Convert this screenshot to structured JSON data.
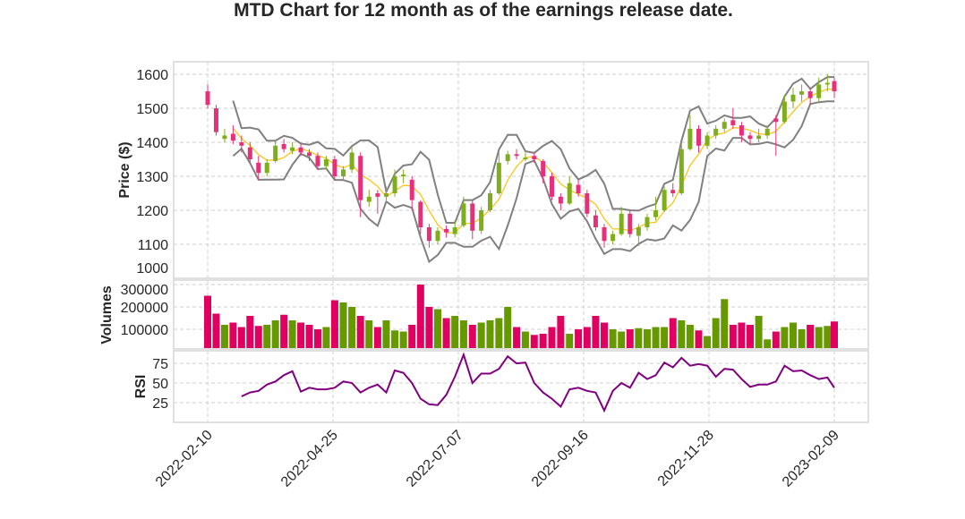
{
  "chart_data": {
    "type": "candlestick",
    "title": "MTD Chart for 12 month as of the earnings release date.",
    "x_ticks": [
      "2022-02-10",
      "2022-04-25",
      "2022-07-07",
      "2022-09-16",
      "2022-11-28",
      "2023-02-09"
    ],
    "grid": true,
    "colors": {
      "up": "#7fae1c",
      "down": "#e8307a",
      "volume_up": "#669900",
      "volume_down": "#e0005f",
      "moving_average": "#ffc107",
      "bands": "#808080",
      "rsi": "#800080"
    },
    "price_panel": {
      "ylabel": "Price ($)",
      "yticks": [
        1000,
        1100,
        1200,
        1300,
        1400,
        1500,
        1600
      ],
      "ylim": [
        1000,
        1637
      ]
    },
    "volume_panel": {
      "ylabel": "Volumes",
      "yticks": [
        100000,
        200000,
        300000
      ],
      "ylim": [
        12000,
        320000
      ]
    },
    "rsi_panel": {
      "ylabel": "RSI",
      "yticks": [
        25,
        50,
        75
      ],
      "ylim": [
        0,
        91
      ]
    },
    "candles": [
      [
        "2022-02-10",
        1550,
        1570,
        1500,
        1510
      ],
      [
        "2022-02-15",
        1500,
        1510,
        1420,
        1430
      ],
      [
        "2022-02-20",
        1410,
        1440,
        1400,
        1420
      ],
      [
        "2022-02-25",
        1425,
        1450,
        1395,
        1405
      ],
      [
        "2022-03-02",
        1400,
        1420,
        1370,
        1390
      ],
      [
        "2022-03-07",
        1385,
        1400,
        1340,
        1350
      ],
      [
        "2022-03-12",
        1340,
        1360,
        1290,
        1310
      ],
      [
        "2022-03-17",
        1310,
        1350,
        1300,
        1340
      ],
      [
        "2022-03-22",
        1345,
        1405,
        1340,
        1390
      ],
      [
        "2022-03-27",
        1395,
        1410,
        1370,
        1380
      ],
      [
        "2022-04-01",
        1375,
        1400,
        1365,
        1385
      ],
      [
        "2022-04-06",
        1385,
        1395,
        1360,
        1370
      ],
      [
        "2022-04-11",
        1370,
        1380,
        1345,
        1360
      ],
      [
        "2022-04-16",
        1360,
        1370,
        1320,
        1330
      ],
      [
        "2022-04-21",
        1330,
        1360,
        1320,
        1350
      ],
      [
        "2022-04-26",
        1350,
        1360,
        1290,
        1300
      ],
      [
        "2022-05-01",
        1300,
        1330,
        1290,
        1320
      ],
      [
        "2022-05-06",
        1320,
        1385,
        1310,
        1370
      ],
      [
        "2022-05-11",
        1360,
        1370,
        1180,
        1230
      ],
      [
        "2022-05-16",
        1225,
        1260,
        1210,
        1240
      ],
      [
        "2022-05-21",
        1250,
        1260,
        1190,
        1240
      ],
      [
        "2022-05-26",
        1240,
        1270,
        1220,
        1250
      ],
      [
        "2022-05-31",
        1250,
        1320,
        1240,
        1300
      ],
      [
        "2022-06-05",
        1300,
        1320,
        1280,
        1305
      ],
      [
        "2022-06-10",
        1290,
        1300,
        1200,
        1230
      ],
      [
        "2022-06-15",
        1225,
        1230,
        1130,
        1150
      ],
      [
        "2022-06-20",
        1150,
        1160,
        1090,
        1110
      ],
      [
        "2022-06-25",
        1110,
        1150,
        1100,
        1140
      ],
      [
        "2022-06-30",
        1145,
        1155,
        1120,
        1135
      ],
      [
        "2022-07-05",
        1130,
        1170,
        1120,
        1150
      ],
      [
        "2022-07-10",
        1155,
        1240,
        1150,
        1220
      ],
      [
        "2022-07-15",
        1220,
        1230,
        1115,
        1140
      ],
      [
        "2022-07-20",
        1140,
        1210,
        1130,
        1200
      ],
      [
        "2022-07-25",
        1200,
        1260,
        1195,
        1250
      ],
      [
        "2022-07-30",
        1250,
        1370,
        1245,
        1340
      ],
      [
        "2022-08-04",
        1345,
        1375,
        1335,
        1365
      ],
      [
        "2022-08-09",
        1365,
        1380,
        1350,
        1360
      ],
      [
        "2022-08-14",
        1350,
        1370,
        1345,
        1355
      ],
      [
        "2022-08-19",
        1360,
        1370,
        1340,
        1350
      ],
      [
        "2022-08-24",
        1345,
        1350,
        1280,
        1300
      ],
      [
        "2022-08-29",
        1300,
        1310,
        1230,
        1240
      ],
      [
        "2022-09-03",
        1240,
        1250,
        1200,
        1220
      ],
      [
        "2022-09-08",
        1220,
        1300,
        1215,
        1280
      ],
      [
        "2022-09-13",
        1275,
        1290,
        1240,
        1250
      ],
      [
        "2022-09-18",
        1250,
        1260,
        1180,
        1190
      ],
      [
        "2022-09-23",
        1185,
        1200,
        1140,
        1150
      ],
      [
        "2022-09-28",
        1150,
        1160,
        1090,
        1110
      ],
      [
        "2022-10-03",
        1110,
        1140,
        1100,
        1130
      ],
      [
        "2022-10-08",
        1130,
        1210,
        1125,
        1190
      ],
      [
        "2022-10-13",
        1190,
        1200,
        1120,
        1130
      ],
      [
        "2022-10-18",
        1125,
        1160,
        1095,
        1150
      ],
      [
        "2022-10-23",
        1150,
        1190,
        1140,
        1180
      ],
      [
        "2022-10-28",
        1180,
        1240,
        1170,
        1200
      ],
      [
        "2022-11-02",
        1200,
        1270,
        1195,
        1260
      ],
      [
        "2022-11-07",
        1260,
        1280,
        1240,
        1250
      ],
      [
        "2022-11-12",
        1250,
        1400,
        1245,
        1380
      ],
      [
        "2022-11-17",
        1380,
        1480,
        1375,
        1440
      ],
      [
        "2022-11-22",
        1440,
        1450,
        1370,
        1390
      ],
      [
        "2022-11-27",
        1390,
        1430,
        1380,
        1420
      ],
      [
        "2022-12-02",
        1420,
        1450,
        1410,
        1440
      ],
      [
        "2022-12-07",
        1440,
        1470,
        1430,
        1460
      ],
      [
        "2022-12-12",
        1465,
        1500,
        1440,
        1450
      ],
      [
        "2022-12-17",
        1450,
        1460,
        1400,
        1420
      ],
      [
        "2022-12-22",
        1420,
        1430,
        1395,
        1410
      ],
      [
        "2022-12-27",
        1410,
        1440,
        1400,
        1420
      ],
      [
        "2023-01-01",
        1420,
        1450,
        1410,
        1440
      ],
      [
        "2023-01-06",
        1470,
        1480,
        1360,
        1460
      ],
      [
        "2023-01-11",
        1460,
        1540,
        1455,
        1520
      ],
      [
        "2023-01-16",
        1520,
        1560,
        1500,
        1540
      ],
      [
        "2023-01-21",
        1540,
        1570,
        1520,
        1550
      ],
      [
        "2023-01-26",
        1550,
        1560,
        1510,
        1530
      ],
      [
        "2023-01-31",
        1530,
        1590,
        1520,
        1570
      ],
      [
        "2023-02-05",
        1570,
        1600,
        1550,
        1575
      ],
      [
        "2023-02-09",
        1580,
        1590,
        1530,
        1550
      ]
    ],
    "volumes": [
      250000,
      170000,
      120000,
      130000,
      110000,
      160000,
      115000,
      120000,
      140000,
      165000,
      140000,
      130000,
      120000,
      100000,
      110000,
      230000,
      220000,
      200000,
      160000,
      140000,
      110000,
      140000,
      95000,
      90000,
      120000,
      300000,
      200000,
      190000,
      150000,
      160000,
      140000,
      120000,
      130000,
      140000,
      150000,
      200000,
      110000,
      90000,
      75000,
      80000,
      110000,
      160000,
      80000,
      100000,
      110000,
      160000,
      130000,
      100000,
      90000,
      100000,
      105000,
      100000,
      110000,
      110000,
      150000,
      140000,
      120000,
      95000,
      70000,
      150000,
      235000,
      120000,
      130000,
      120000,
      160000,
      55000,
      90000,
      110000,
      130000,
      100000,
      120000,
      110000,
      115000,
      135000
    ],
    "rsi": [
      null,
      null,
      null,
      null,
      33,
      38,
      40,
      48,
      52,
      60,
      65,
      39,
      44,
      42,
      42,
      44,
      52,
      50,
      38,
      44,
      48,
      38,
      66,
      63,
      50,
      30,
      23,
      22,
      35,
      58,
      86,
      50,
      62,
      62,
      68,
      84,
      75,
      76,
      50,
      38,
      30,
      20,
      42,
      44,
      40,
      38,
      15,
      40,
      50,
      44,
      63,
      55,
      60,
      76,
      70,
      82,
      72,
      74,
      72,
      58,
      68,
      67,
      55,
      45,
      48,
      48,
      52,
      72,
      65,
      66,
      60,
      55,
      57,
      44
    ]
  }
}
